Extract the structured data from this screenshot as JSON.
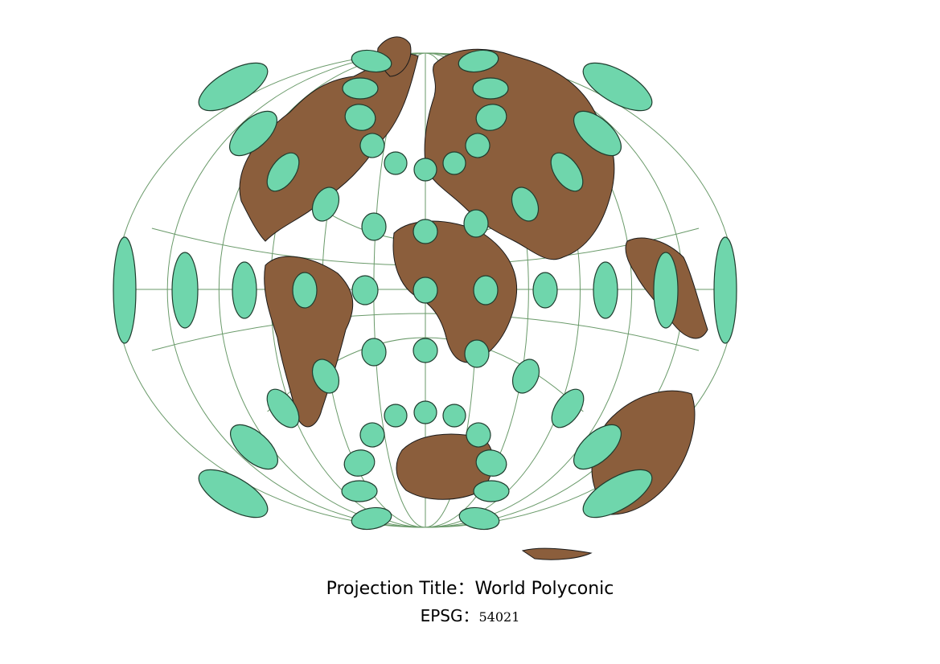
{
  "map": {
    "projection_name": "World Polyconic",
    "colors": {
      "land": "#8b5e3c",
      "border": "#1a1a1a",
      "graticule": "#6a9a6a",
      "ellipse_fill": "#6fd6ac",
      "ellipse_stroke": "#1f3d2e"
    },
    "graticule_meridians_deg": [
      -180,
      -150,
      -120,
      -90,
      -60,
      -30,
      0,
      30,
      60,
      90,
      120,
      150,
      180
    ],
    "graticule_parallels_deg": [
      -90,
      -60,
      -30,
      0,
      30,
      60,
      90
    ],
    "tissot_indicatrix_note": ""
  },
  "caption": {
    "title_label": "Projection Title：",
    "title_value": "World Polyconic",
    "epsg_label": "EPSG：",
    "epsg_value": "54021"
  }
}
